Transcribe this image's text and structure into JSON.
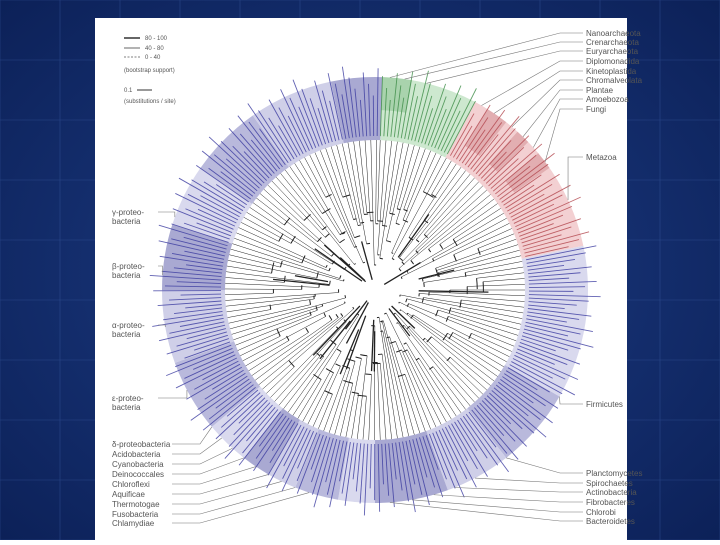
{
  "legend": {
    "items": [
      "80 - 100",
      "40 - 80",
      "0 - 40"
    ],
    "caption": "(bootstrap support)",
    "scale": "0.1",
    "scale_caption": "(substitutions / site)"
  },
  "right_labels": [
    "Nanoarchaeota",
    "Crenarchaeota",
    "Euryarchaeota",
    "Diplomonadida",
    "Kinetoplastida",
    "Chromalveolata",
    "Plantae",
    "Amoebozoa",
    "Fungi",
    "Metazoa",
    "Firmicutes",
    "Planctomycetes",
    "Spirochaetes",
    "Actinobacteria",
    "Fibrobacteres",
    "Chlorobi",
    "Bacteroidetes"
  ],
  "left_labels": [
    [
      "γ-proteo-",
      "bacteria"
    ],
    [
      "β-proteo-",
      "bacteria"
    ],
    [
      "α-proteo-",
      "bacteria"
    ],
    [
      "ε-proteo-",
      "bacteria"
    ],
    [
      "δ-proteobacteria"
    ],
    [
      "Acidobacteria"
    ],
    [
      "Cyanobacteria"
    ],
    [
      "Deinococcales"
    ],
    [
      "Chloroflexi"
    ],
    [
      "Aquificae"
    ],
    [
      "Thermotogae"
    ],
    [
      "Fusobacteria"
    ],
    [
      "Chlamydiae"
    ]
  ]
}
